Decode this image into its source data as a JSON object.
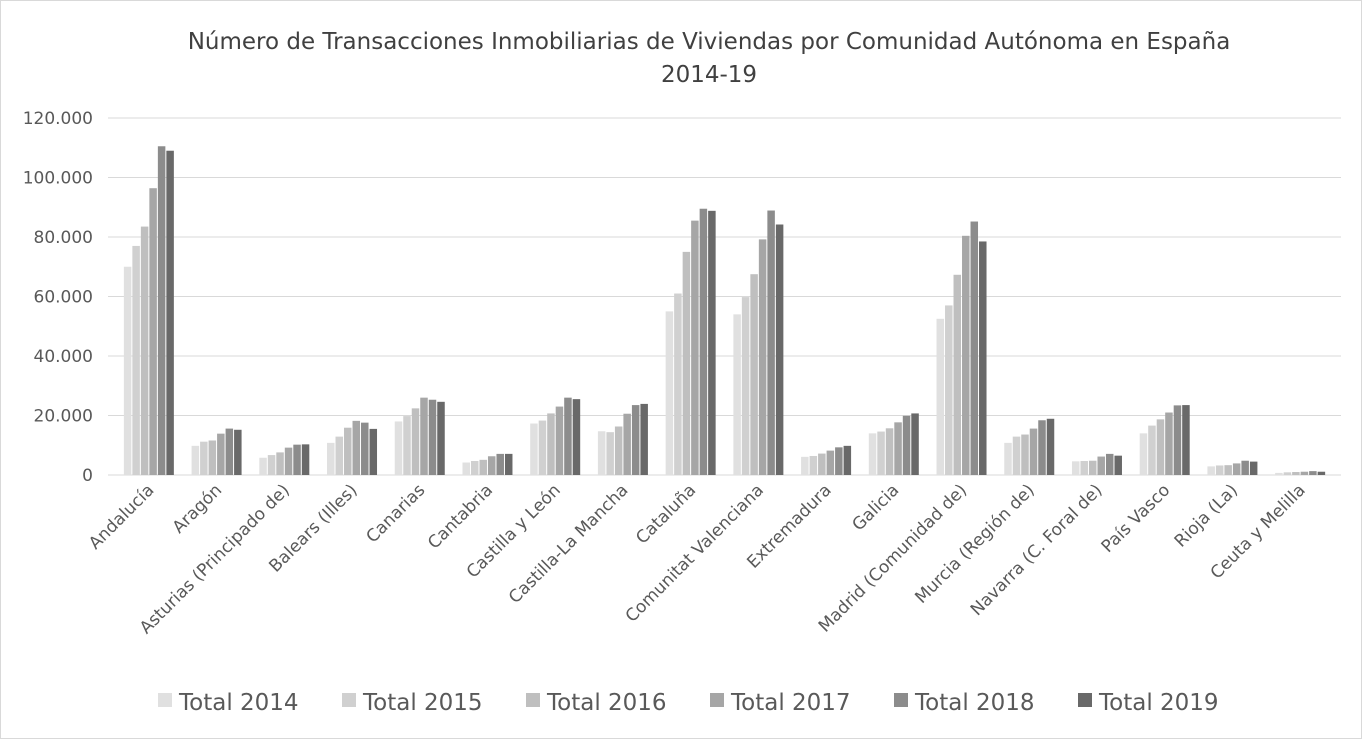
{
  "chart_data": {
    "type": "bar",
    "title_lines": [
      "Número de Transacciones Inmobiliarias de Viviendas por Comunidad Autónoma en España",
      "2014-19"
    ],
    "categories": [
      "Andalucía",
      "Aragón",
      "Asturias (Principado de)",
      "Balears (Illes)",
      "Canarias",
      "Cantabria",
      "Castilla y León",
      "Castilla-La Mancha",
      "Cataluña",
      "Comunitat Valenciana",
      "Extremadura",
      "Galicia",
      "Madrid (Comunidad de)",
      "Murcia (Región de)",
      "Navarra (C. Foral de)",
      "País Vasco",
      "Rioja (La)",
      "Ceuta y Melilla"
    ],
    "series": [
      {
        "name": "Total 2014",
        "color": "#e0e0e0",
        "values": [
          70000,
          9800,
          5800,
          10800,
          18000,
          4200,
          17300,
          14700,
          55000,
          54000,
          6100,
          14000,
          52500,
          10800,
          4600,
          14000,
          2900,
          700
        ]
      },
      {
        "name": "Total 2015",
        "color": "#d0d0d0",
        "values": [
          77000,
          11200,
          6700,
          12900,
          19800,
          4700,
          18300,
          14400,
          61000,
          59800,
          6400,
          14600,
          57000,
          12900,
          4700,
          16600,
          3200,
          900
        ]
      },
      {
        "name": "Total 2016",
        "color": "#bfbfbf",
        "values": [
          83500,
          11600,
          7600,
          15900,
          22400,
          5100,
          20700,
          16300,
          75000,
          67500,
          7200,
          15700,
          67300,
          13600,
          4800,
          18700,
          3300,
          1000
        ]
      },
      {
        "name": "Total 2017",
        "color": "#a6a6a6",
        "values": [
          96400,
          13900,
          9200,
          18200,
          26000,
          6300,
          23000,
          20600,
          85500,
          79200,
          8200,
          17700,
          80400,
          15600,
          6200,
          21000,
          3900,
          1100
        ]
      },
      {
        "name": "Total 2018",
        "color": "#8c8c8c",
        "values": [
          110500,
          15600,
          10200,
          17600,
          25300,
          7100,
          26000,
          23500,
          89500,
          88900,
          9300,
          19900,
          85200,
          18400,
          7100,
          23400,
          4800,
          1300
        ]
      },
      {
        "name": "Total 2019",
        "color": "#696969",
        "values": [
          109000,
          15200,
          10300,
          15500,
          24600,
          7100,
          25500,
          23900,
          88800,
          84200,
          9800,
          20700,
          78500,
          18900,
          6500,
          23500,
          4500,
          1100
        ]
      }
    ],
    "ylim": [
      0,
      120000
    ],
    "yticks": [
      {
        "value": 0,
        "label": "0"
      },
      {
        "value": 20000,
        "label": "20.000"
      },
      {
        "value": 40000,
        "label": "40.000"
      },
      {
        "value": 60000,
        "label": "60.000"
      },
      {
        "value": 80000,
        "label": "80.000"
      },
      {
        "value": 100000,
        "label": "100.000"
      },
      {
        "value": 120000,
        "label": "120.000"
      }
    ],
    "grid": true,
    "legend_position": "bottom"
  }
}
